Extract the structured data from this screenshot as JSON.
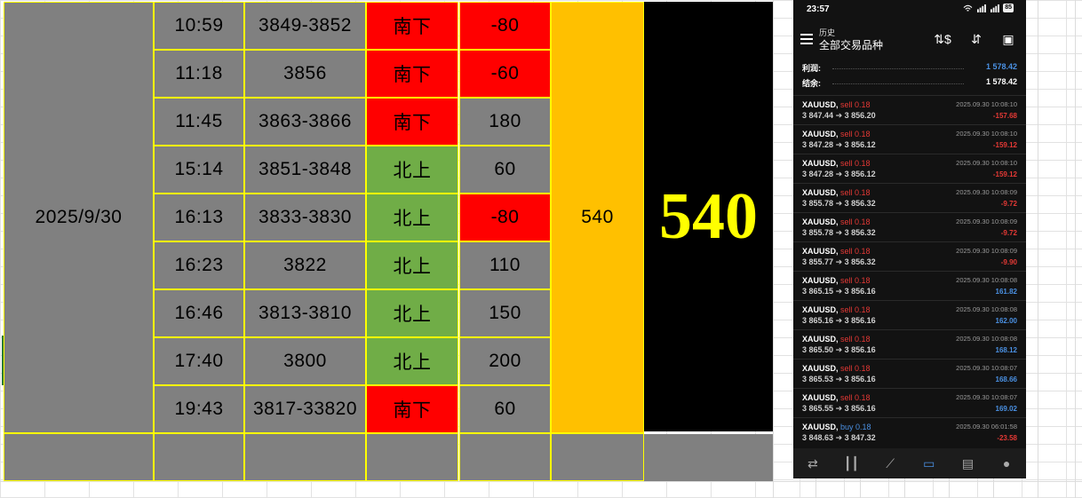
{
  "sheet": {
    "date": "2025/9/30",
    "rows": [
      {
        "time": "10:59",
        "price": "3849-3852",
        "direction": "南下",
        "dir_color": "red",
        "points": "-80",
        "pts_color": "red"
      },
      {
        "time": "11:18",
        "price": "3856",
        "direction": "南下",
        "dir_color": "red",
        "points": "-60",
        "pts_color": "red"
      },
      {
        "time": "11:45",
        "price": "3863-3866",
        "direction": "南下",
        "dir_color": "red",
        "points": "180",
        "pts_color": "gray"
      },
      {
        "time": "15:14",
        "price": "3851-3848",
        "direction": "北上",
        "dir_color": "green",
        "points": "60",
        "pts_color": "gray"
      },
      {
        "time": "16:13",
        "price": "3833-3830",
        "direction": "北上",
        "dir_color": "green",
        "points": "-80",
        "pts_color": "red"
      },
      {
        "time": "16:23",
        "price": "3822",
        "direction": "北上",
        "dir_color": "green",
        "points": "110",
        "pts_color": "gray"
      },
      {
        "time": "16:46",
        "price": "3813-3810",
        "direction": "北上",
        "dir_color": "green",
        "points": "150",
        "pts_color": "gray"
      },
      {
        "time": "17:40",
        "price": "3800",
        "direction": "北上",
        "dir_color": "green",
        "points": "200",
        "pts_color": "gray"
      },
      {
        "time": "19:43",
        "price": "3817-33820",
        "direction": "南下",
        "dir_color": "red",
        "points": "60",
        "pts_color": "gray"
      }
    ],
    "total": "540",
    "big_total": "540",
    "colors": {
      "red": "#ff0000",
      "green": "#70ad47",
      "gray": "#808080",
      "gold": "#ffc000",
      "border": "#ffff00",
      "big_text": "#ffff00"
    }
  },
  "phone": {
    "status_time": "23:57",
    "battery": "85",
    "header_small": "历史",
    "header_title": "全部交易品种",
    "summary": [
      {
        "label": "利润:",
        "value": "1 578.42",
        "color": "#4a90e2"
      },
      {
        "label": "结余:",
        "value": "1 578.42",
        "color": "#ffffff"
      }
    ],
    "trades": [
      {
        "symbol": "XAUUSD,",
        "side": "sell 0.18",
        "side_color": "neg",
        "open": "3 847.44",
        "arrow": "➔",
        "close": "3 856.20",
        "date": "2025.09.30 10:08:10",
        "pl": "-157.68",
        "pl_color": "neg"
      },
      {
        "symbol": "XAUUSD,",
        "side": "sell 0.18",
        "side_color": "neg",
        "open": "3 847.28",
        "arrow": "➔",
        "close": "3 856.12",
        "date": "2025.09.30 10:08:10",
        "pl": "-159.12",
        "pl_color": "neg"
      },
      {
        "symbol": "XAUUSD,",
        "side": "sell 0.18",
        "side_color": "neg",
        "open": "3 847.28",
        "arrow": "➔",
        "close": "3 856.12",
        "date": "2025.09.30 10:08:10",
        "pl": "-159.12",
        "pl_color": "neg"
      },
      {
        "symbol": "XAUUSD,",
        "side": "sell 0.18",
        "side_color": "neg",
        "open": "3 855.78",
        "arrow": "➔",
        "close": "3 856.32",
        "date": "2025.09.30 10:08:09",
        "pl": "-9.72",
        "pl_color": "neg"
      },
      {
        "symbol": "XAUUSD,",
        "side": "sell 0.18",
        "side_color": "neg",
        "open": "3 855.78",
        "arrow": "➔",
        "close": "3 856.32",
        "date": "2025.09.30 10:08:09",
        "pl": "-9.72",
        "pl_color": "neg"
      },
      {
        "symbol": "XAUUSD,",
        "side": "sell 0.18",
        "side_color": "neg",
        "open": "3 855.77",
        "arrow": "➔",
        "close": "3 856.32",
        "date": "2025.09.30 10:08:09",
        "pl": "-9.90",
        "pl_color": "neg"
      },
      {
        "symbol": "XAUUSD,",
        "side": "sell 0.18",
        "side_color": "neg",
        "open": "3 865.15",
        "arrow": "➔",
        "close": "3 856.16",
        "date": "2025.09.30 10:08:08",
        "pl": "161.82",
        "pl_color": "pos"
      },
      {
        "symbol": "XAUUSD,",
        "side": "sell 0.18",
        "side_color": "neg",
        "open": "3 865.16",
        "arrow": "➔",
        "close": "3 856.16",
        "date": "2025.09.30 10:08:08",
        "pl": "162.00",
        "pl_color": "pos"
      },
      {
        "symbol": "XAUUSD,",
        "side": "sell 0.18",
        "side_color": "neg",
        "open": "3 865.50",
        "arrow": "➔",
        "close": "3 856.16",
        "date": "2025.09.30 10:08:08",
        "pl": "168.12",
        "pl_color": "pos"
      },
      {
        "symbol": "XAUUSD,",
        "side": "sell 0.18",
        "side_color": "neg",
        "open": "3 865.53",
        "arrow": "➔",
        "close": "3 856.16",
        "date": "2025.09.30 10:08:07",
        "pl": "168.66",
        "pl_color": "pos"
      },
      {
        "symbol": "XAUUSD,",
        "side": "sell 0.18",
        "side_color": "neg",
        "open": "3 865.55",
        "arrow": "➔",
        "close": "3 856.16",
        "date": "2025.09.30 10:08:07",
        "pl": "169.02",
        "pl_color": "pos"
      },
      {
        "symbol": "XAUUSD,",
        "side": "buy 0.18",
        "side_color": "pos",
        "open": "3 848.63",
        "arrow": "➔",
        "close": "3 847.32",
        "date": "2025.09.30 06:01:58",
        "pl": "-23.58",
        "pl_color": "neg"
      }
    ],
    "nav_icons": [
      "quotes-icon",
      "chart-candles-icon",
      "trade-icon",
      "history-icon",
      "news-icon",
      "chat-icon"
    ],
    "nav_active": "history-icon"
  }
}
